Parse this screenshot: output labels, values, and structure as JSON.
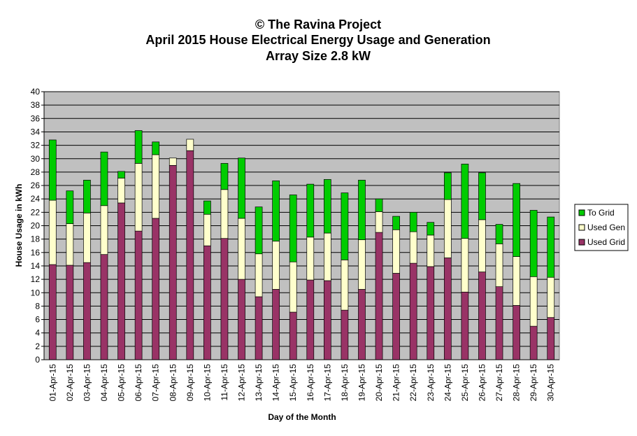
{
  "chart_data": {
    "type": "stacked-bar",
    "title": "© The Ravina Project",
    "subtitle": "April 2015 House Electrical Energy Usage and Generation",
    "subtitle2": "Array Size 2.8 kW",
    "x_label": "Day of the Month",
    "y_label": "House Usage in kWh",
    "categories": [
      "01-Apr-15",
      "02-Apr-15",
      "03-Apr-15",
      "04-Apr-15",
      "05-Apr-15",
      "06-Apr-15",
      "07-Apr-15",
      "08-Apr-15",
      "09-Apr-15",
      "10-Apr-15",
      "11-Apr-15",
      "12-Apr-15",
      "13-Apr-15",
      "14-Apr-15",
      "15-Apr-15",
      "16-Apr-15",
      "17-Apr-15",
      "18-Apr-15",
      "19-Apr-15",
      "20-Apr-15",
      "21-Apr-15",
      "22-Apr-15",
      "23-Apr-15",
      "24-Apr-15",
      "25-Apr-15",
      "26-Apr-15",
      "27-Apr-15",
      "28-Apr-15",
      "29-Apr-15",
      "30-Apr-15"
    ],
    "series": [
      {
        "name": "Used Grid",
        "color": "#993366",
        "values": [
          14.2,
          14.1,
          14.5,
          15.7,
          23.4,
          19.2,
          21.1,
          29.0,
          31.2,
          17.0,
          18.1,
          12.0,
          9.4,
          10.5,
          7.1,
          11.9,
          11.8,
          7.4,
          10.5,
          19.0,
          12.9,
          14.4,
          13.9,
          15.2,
          10.1,
          13.1,
          10.9,
          8.1,
          5.0,
          6.3
        ]
      },
      {
        "name": "Used Gen",
        "color": "#ffffcc",
        "values": [
          9.6,
          6.2,
          7.4,
          7.3,
          3.7,
          10.1,
          9.5,
          1.1,
          1.7,
          4.7,
          7.3,
          9.1,
          6.4,
          7.2,
          7.5,
          6.4,
          7.1,
          7.5,
          7.4,
          3.1,
          6.5,
          4.7,
          4.7,
          8.7,
          8.0,
          7.8,
          6.4,
          7.3,
          7.4,
          6.0
        ]
      },
      {
        "name": "To Grid",
        "color": "#00cc00",
        "values": [
          9.0,
          4.9,
          4.9,
          8.0,
          1.0,
          4.9,
          1.9,
          0,
          0,
          2.0,
          3.9,
          9.0,
          7.0,
          9.0,
          10.0,
          7.9,
          8.0,
          10.0,
          8.9,
          1.9,
          2.0,
          2.9,
          1.9,
          4.0,
          11.1,
          7.0,
          2.9,
          10.9,
          9.9,
          9.0
        ]
      }
    ],
    "ylim": [
      0,
      40
    ],
    "yticks": [
      0,
      2,
      4,
      6,
      8,
      10,
      12,
      14,
      16,
      18,
      20,
      22,
      24,
      26,
      28,
      30,
      32,
      34,
      36,
      38,
      40
    ],
    "grid": true,
    "legend": "right"
  }
}
